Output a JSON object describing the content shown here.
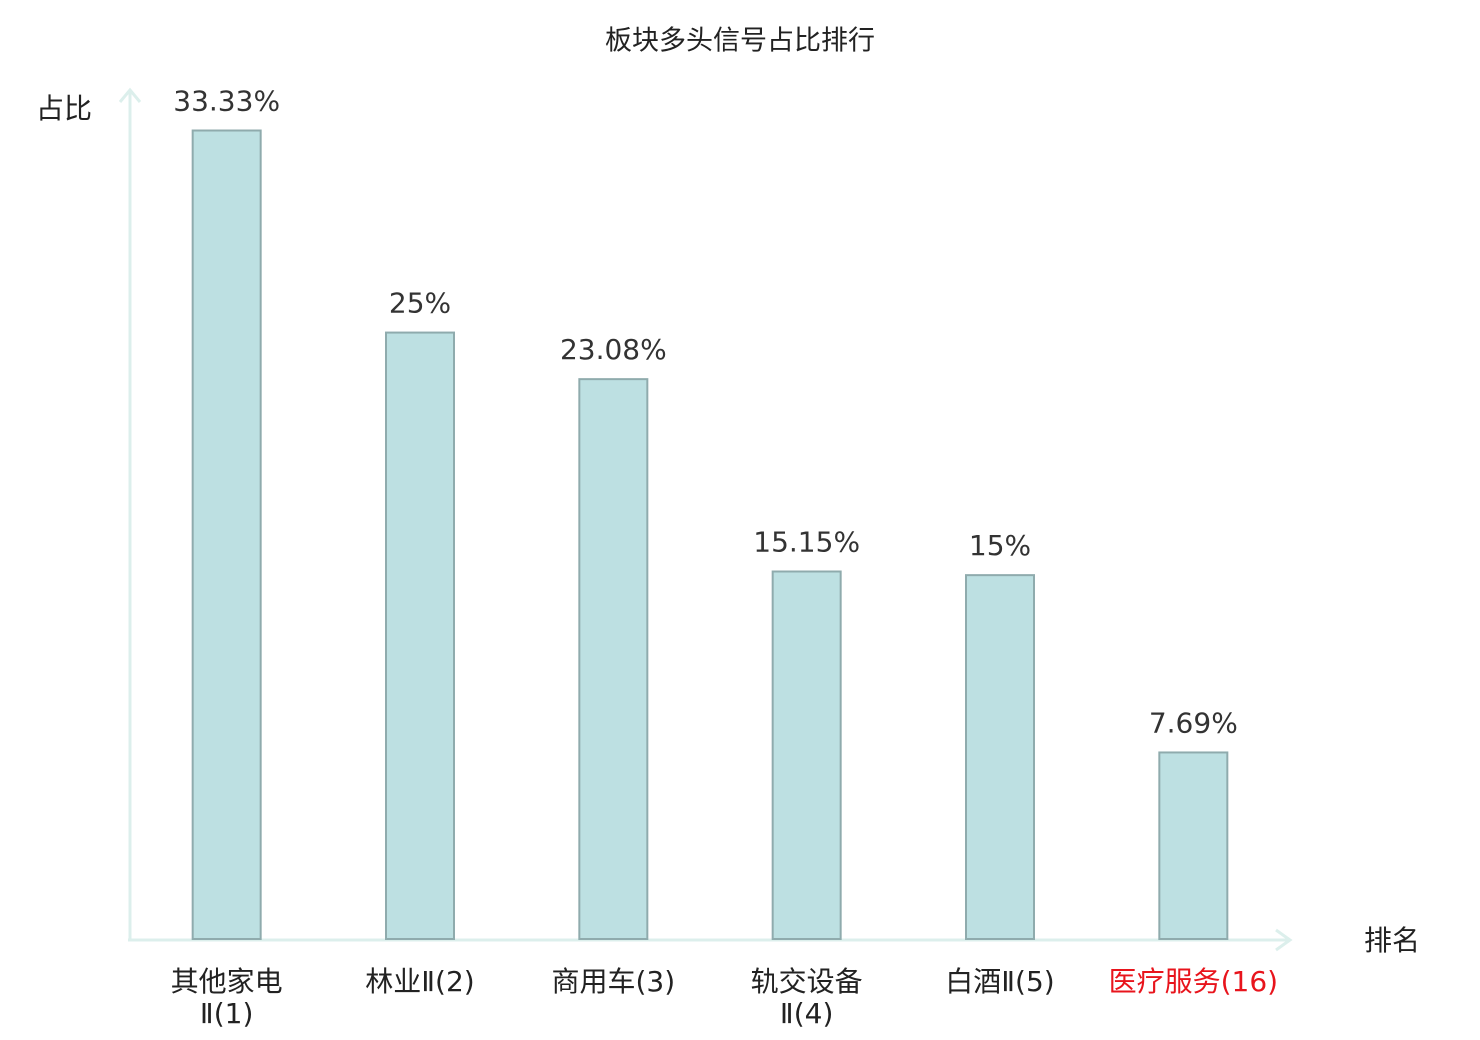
{
  "chart_data": {
    "type": "bar",
    "title": "板块多头信号占比排行",
    "y_label": "占比",
    "x_label": "排名",
    "categories": [
      "其他家电\nⅡ(1)",
      "林业Ⅱ(2)",
      "商用车(3)",
      "轨交设备\nⅡ(4)",
      "白酒Ⅱ(5)",
      "医疗服务(16)"
    ],
    "category_colors": [
      "#222222",
      "#222222",
      "#222222",
      "#222222",
      "#222222",
      "#e8141c"
    ],
    "values": [
      33.33,
      25,
      23.08,
      15.15,
      15,
      7.69
    ],
    "value_labels": [
      "33.33%",
      "25%",
      "23.08%",
      "15.15%",
      "15%",
      "7.69%"
    ],
    "color": "#bde0e2",
    "edge_color": "#8fabad",
    "ylim": [
      0,
      35
    ]
  }
}
